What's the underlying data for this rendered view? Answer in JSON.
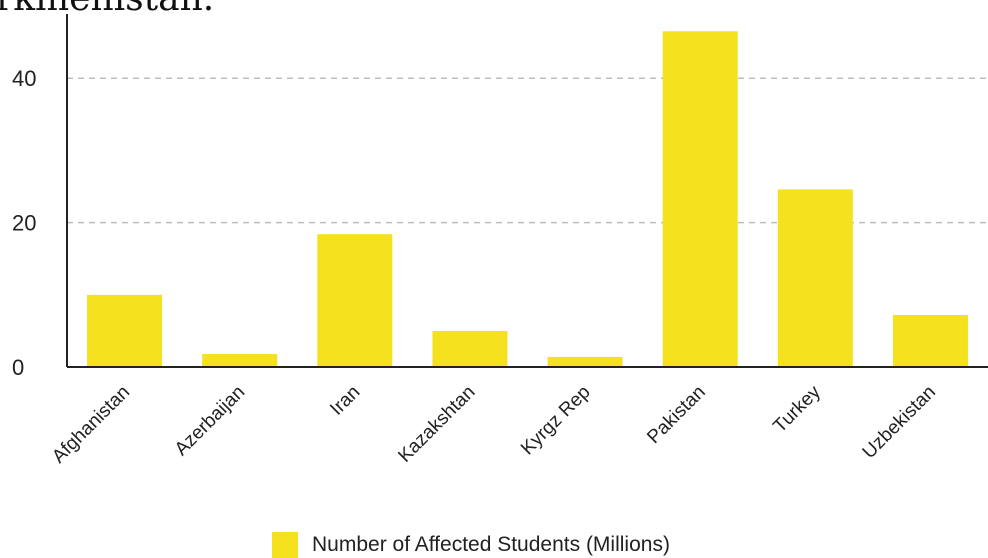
{
  "caption": "rkmenistan.",
  "chart_data": {
    "type": "bar",
    "categories": [
      "Afghanistan",
      "Azerbaijan",
      "Iran",
      "Kazakshtan",
      "Kyrgz Rep",
      "Pakistan",
      "Turkey",
      "Uzbekistan"
    ],
    "series": [
      {
        "name": "Number of Affected Students (Millions)",
        "values": [
          10.0,
          1.8,
          18.4,
          5.0,
          1.4,
          46.5,
          24.6,
          7.2
        ],
        "color": "#f5e11d"
      }
    ],
    "y_ticks": [
      0,
      20,
      40
    ],
    "ylim": [
      0,
      48
    ],
    "grid": "horizontal dashed",
    "legend": "bottom-center",
    "colors": {
      "bar": "#f5e11d",
      "grid": "#bdbdbd",
      "axis": "#222222"
    }
  }
}
